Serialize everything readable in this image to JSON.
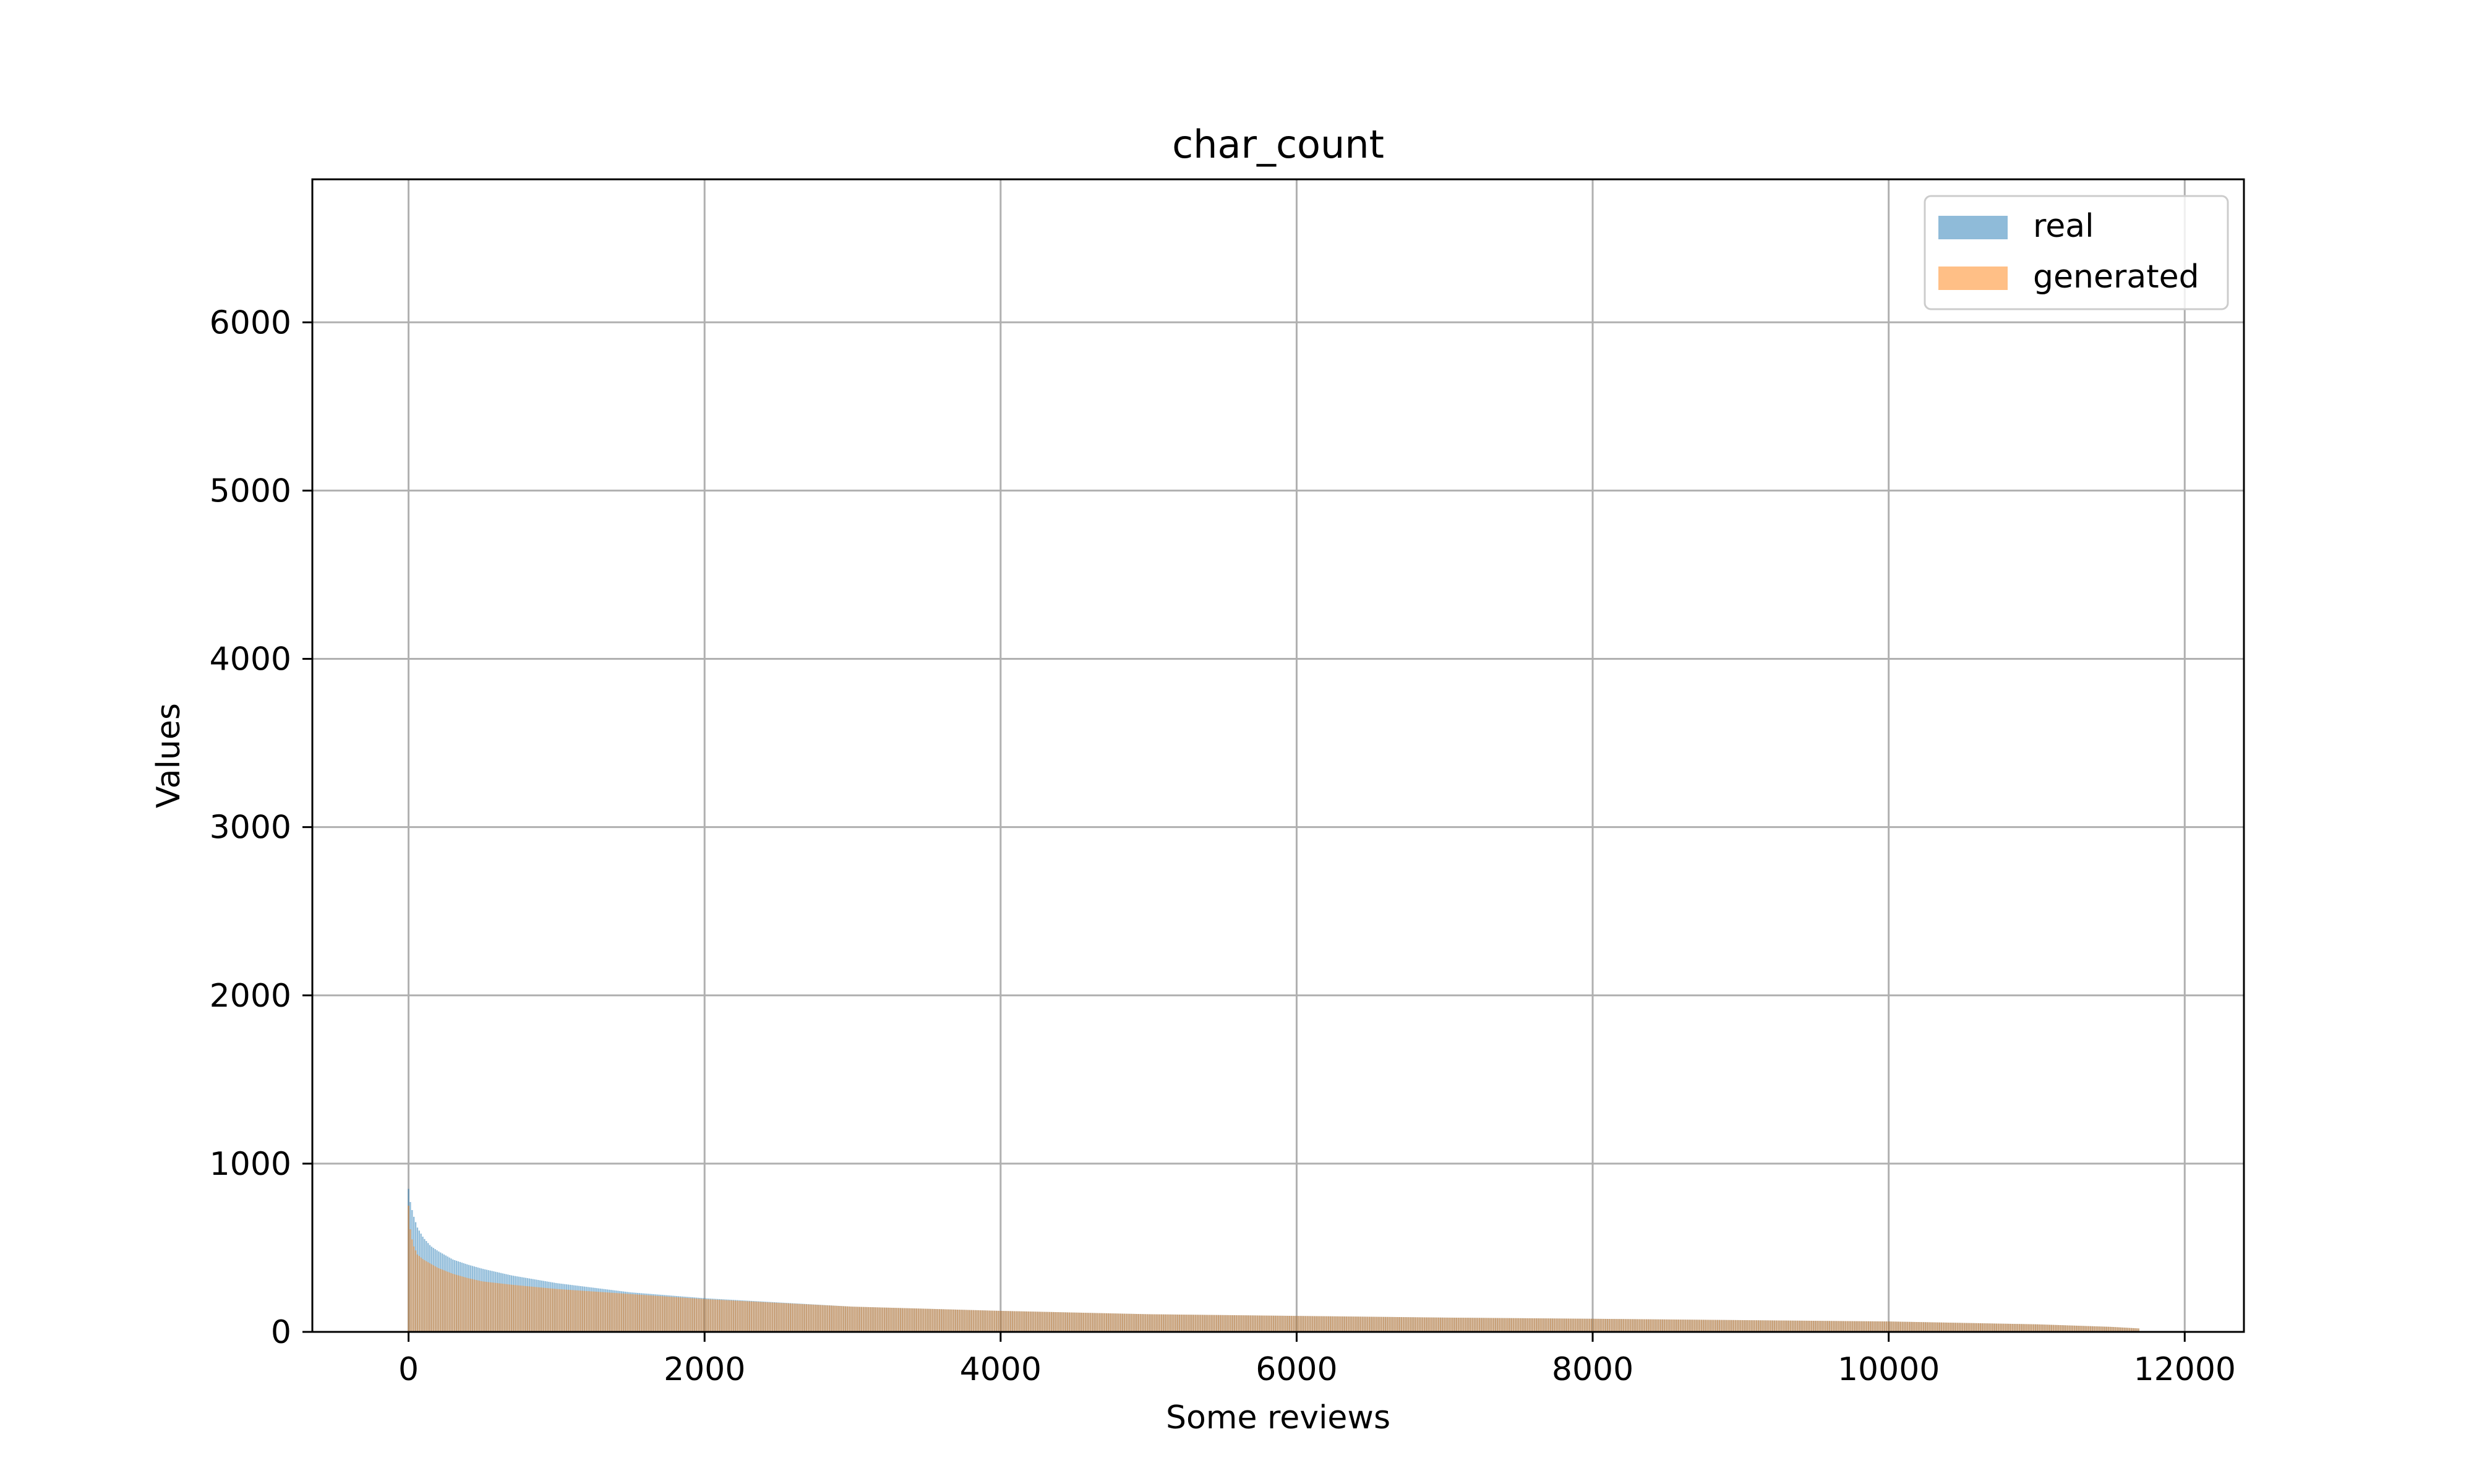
{
  "chart_data": {
    "type": "bar",
    "title": "char_count",
    "xlabel": "Some reviews",
    "ylabel": "Values",
    "xlim": [
      -650,
      12400
    ],
    "ylim": [
      0,
      6850
    ],
    "xticks": [
      0,
      2000,
      4000,
      6000,
      8000,
      10000,
      12000
    ],
    "yticks": [
      0,
      1000,
      2000,
      3000,
      4000,
      5000,
      6000
    ],
    "grid": true,
    "legend_position": "top-right",
    "n_points": 11700,
    "series": [
      {
        "name": "real",
        "color": "#1f77b4",
        "alpha": 0.5,
        "x": [
          0,
          10,
          30,
          60,
          100,
          150,
          200,
          300,
          400,
          500,
          700,
          1000,
          1500,
          2000,
          3000,
          4000,
          5000,
          6000,
          7000,
          8000,
          9000,
          10000,
          11000,
          11500,
          11700
        ],
        "values": [
          850,
          780,
          700,
          620,
          560,
          510,
          480,
          430,
          400,
          375,
          335,
          290,
          235,
          200,
          150,
          125,
          105,
          95,
          85,
          78,
          70,
          62,
          45,
          30,
          20
        ]
      },
      {
        "name": "generated",
        "color": "#ff7f0e",
        "alpha": 0.5,
        "x": [
          0,
          10,
          30,
          60,
          100,
          150,
          200,
          300,
          400,
          500,
          700,
          1000,
          1500,
          2000,
          3000,
          4000,
          5000,
          6000,
          7000,
          8000,
          9000,
          10000,
          11000,
          11500,
          11700
        ],
        "values": [
          750,
          620,
          520,
          460,
          430,
          405,
          380,
          345,
          320,
          300,
          280,
          255,
          225,
          195,
          150,
          125,
          105,
          95,
          85,
          78,
          70,
          62,
          45,
          30,
          20
        ]
      }
    ]
  }
}
